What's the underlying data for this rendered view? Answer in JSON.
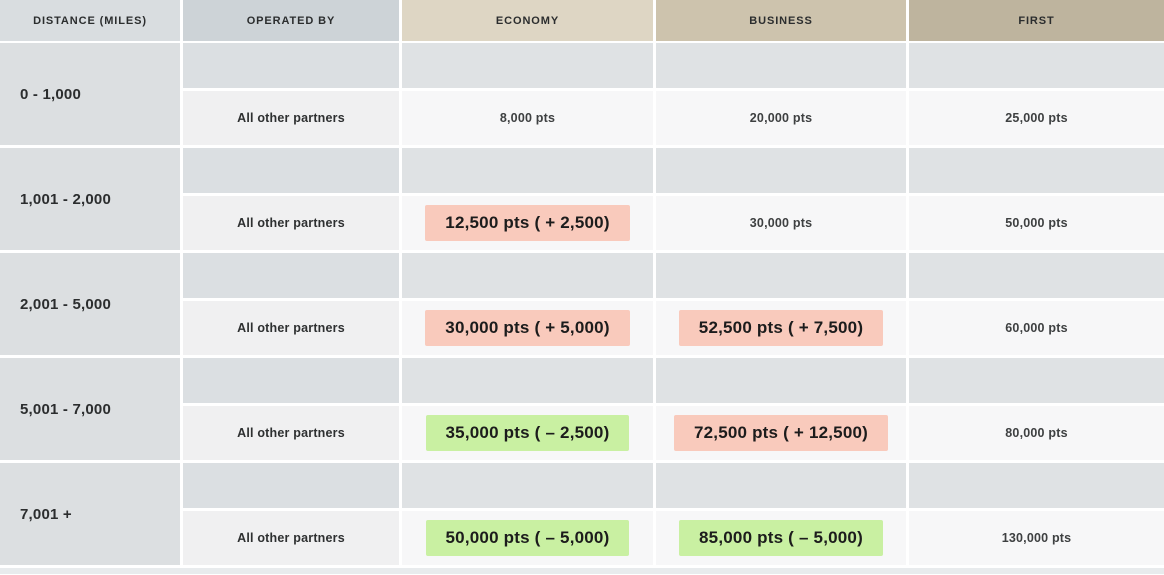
{
  "chart_data": {
    "type": "table",
    "columns": [
      "DISTANCE (MILES)",
      "OPERATED BY",
      "ECONOMY",
      "BUSINESS",
      "FIRST"
    ],
    "row_label": "All other partners",
    "bands": [
      {
        "distance": "0 - 1,000",
        "economy": {
          "text": "8,000 pts",
          "highlight": "none"
        },
        "business": {
          "text": "20,000 pts",
          "highlight": "none"
        },
        "first": {
          "text": "25,000 pts",
          "highlight": "none"
        }
      },
      {
        "distance": "1,001 - 2,000",
        "economy": {
          "text": "12,500 pts ( + 2,500)",
          "highlight": "increase"
        },
        "business": {
          "text": "30,000 pts",
          "highlight": "none"
        },
        "first": {
          "text": "50,000 pts",
          "highlight": "none"
        }
      },
      {
        "distance": "2,001 - 5,000",
        "economy": {
          "text": "30,000 pts ( + 5,000)",
          "highlight": "increase"
        },
        "business": {
          "text": "52,500 pts ( + 7,500)",
          "highlight": "increase"
        },
        "first": {
          "text": "60,000 pts",
          "highlight": "none"
        }
      },
      {
        "distance": "5,001 - 7,000",
        "economy": {
          "text": "35,000 pts ( – 2,500)",
          "highlight": "decrease"
        },
        "business": {
          "text": "72,500 pts ( + 12,500)",
          "highlight": "increase"
        },
        "first": {
          "text": "80,000 pts",
          "highlight": "none"
        }
      },
      {
        "distance": "7,001 +",
        "economy": {
          "text": "50,000 pts ( – 5,000)",
          "highlight": "decrease"
        },
        "business": {
          "text": "85,000 pts ( – 5,000)",
          "highlight": "decrease"
        },
        "first": {
          "text": "130,000 pts",
          "highlight": "none"
        }
      }
    ]
  },
  "colors": {
    "highlight_increase": "#f9cabc",
    "highlight_decrease": "#c9f0a2",
    "header_distance": "#d9dde0",
    "header_operated": "#cdd3d7",
    "header_economy": "#ded6c4",
    "header_business": "#cdc3ad",
    "header_first": "#beb49e"
  }
}
